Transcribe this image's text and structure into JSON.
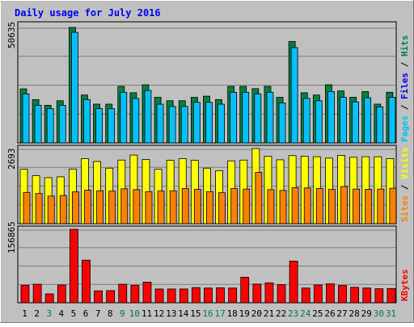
{
  "chart_data": {
    "type": "bar",
    "title": "Daily usage for July 2016",
    "categories": [
      "1",
      "2",
      "3",
      "4",
      "5",
      "6",
      "7",
      "8",
      "9",
      "10",
      "11",
      "12",
      "13",
      "14",
      "15",
      "16",
      "17",
      "18",
      "19",
      "20",
      "21",
      "22",
      "23",
      "24",
      "25",
      "26",
      "27",
      "28",
      "29",
      "30",
      "31"
    ],
    "weekend_days": [
      "3",
      "9",
      "10",
      "16",
      "17",
      "23",
      "24",
      "30",
      "31"
    ],
    "panels": [
      {
        "name": "hits-files-pages",
        "max_label": "50635",
        "ylim": [
          0,
          50635
        ],
        "legend": [
          "Pages",
          "Files",
          "Hits"
        ],
        "series": [
          {
            "name": "Hits",
            "color": "#008040",
            "values": [
              23700,
              19000,
              16500,
              18500,
              50635,
              21000,
              17000,
              17000,
              24800,
              22000,
              25500,
              20000,
              18500,
              18500,
              20000,
              20500,
              19000,
              24800,
              24800,
              23800,
              24800,
              20000,
              44500,
              22000,
              21000,
              25500,
              22800,
              20000,
              22500,
              17000,
              22200
            ]
          },
          {
            "name": "Files",
            "color": "#00c0ff",
            "values": [
              21500,
              16500,
              15000,
              16500,
              48500,
              19000,
              15000,
              15000,
              22200,
              19500,
              23000,
              17000,
              16000,
              16000,
              17800,
              17800,
              17000,
              22200,
              22200,
              21500,
              22200,
              17500,
              41800,
              19500,
              18500,
              22500,
              20000,
              18000,
              19800,
              15800,
              20000
            ]
          },
          {
            "name": "Pages",
            "color": "#00c0ff",
            "values": [
              21500,
              16500,
              15000,
              16500,
              48500,
              19000,
              15000,
              15000,
              22200,
              19500,
              23000,
              17000,
              16000,
              16000,
              17800,
              17800,
              17000,
              22200,
              22200,
              21500,
              22200,
              17500,
              41800,
              19500,
              18500,
              22500,
              20000,
              18000,
              19800,
              15800,
              20000
            ]
          }
        ]
      },
      {
        "name": "visits-sites",
        "max_label": "2693",
        "ylim": [
          0,
          2693
        ],
        "legend": [
          "Sites",
          "Visits"
        ],
        "series": [
          {
            "name": "Visits",
            "color": "#ffff00",
            "values": [
              1950,
              1720,
              1650,
              1680,
              1960,
              2330,
              2230,
              1990,
              2280,
              2460,
              2300,
              1950,
              2270,
              2330,
              2270,
              1990,
              1900,
              2250,
              2280,
              2693,
              2420,
              2290,
              2440,
              2420,
              2400,
              2350,
              2450,
              2380,
              2400,
              2400,
              2330
            ]
          },
          {
            "name": "Sites",
            "color": "#ff8000",
            "values": [
              1120,
              1080,
              990,
              1010,
              1140,
              1200,
              1180,
              1170,
              1250,
              1220,
              1150,
              1170,
              1180,
              1260,
              1230,
              1150,
              1110,
              1260,
              1240,
              1840,
              1220,
              1190,
              1290,
              1280,
              1260,
              1230,
              1330,
              1240,
              1230,
              1240,
              1270
            ]
          }
        ]
      },
      {
        "name": "kbytes",
        "max_label": "156865",
        "ylim": [
          0,
          156865
        ],
        "legend": [
          "KBytes"
        ],
        "series": [
          {
            "name": "KBytes",
            "color": "#ff0000",
            "values": [
              37500,
              39500,
              19000,
              38000,
              156865,
              91000,
              25500,
              26000,
              39500,
              37500,
              44000,
              29500,
              29500,
              29500,
              32500,
              31500,
              32000,
              31500,
              54500,
              40000,
              42500,
              38500,
              89000,
              31500,
              38000,
              40500,
              37000,
              33000,
              31500,
              30000,
              30500
            ]
          }
        ]
      }
    ]
  },
  "colors": {
    "background": "#c0c0c0",
    "title": "#0000ff",
    "weekday_label": "#000000",
    "weekend_label": "#008040",
    "pages_legend": "#00c0ff",
    "files_legend": "#0000ff",
    "hits_legend": "#008040",
    "sites_legend": "#ff8000",
    "visits_legend": "#ffff00",
    "kbytes_legend": "#ff0000"
  }
}
